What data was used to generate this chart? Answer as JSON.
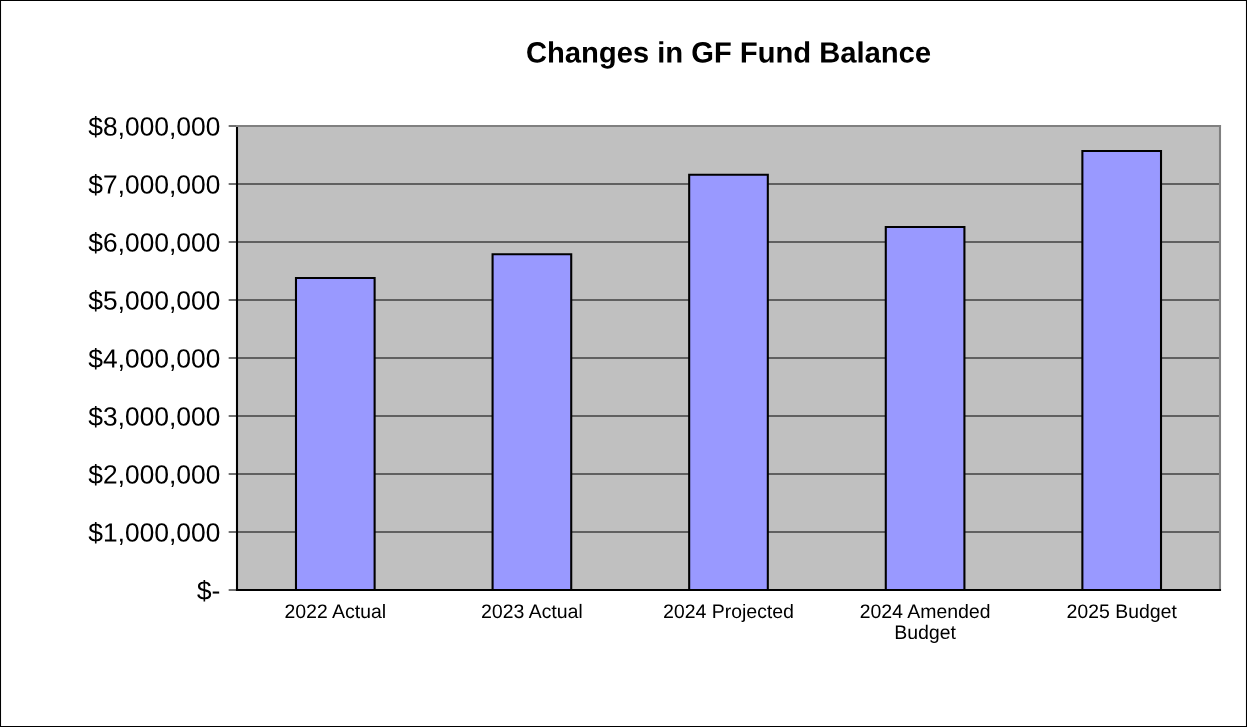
{
  "chart_data": {
    "type": "bar",
    "title": "Changes in GF Fund Balance",
    "categories": [
      "2022 Actual",
      "2023 Actual",
      "2024 Projected",
      "2024 Amended\nBudget",
      "2025 Budget"
    ],
    "values": [
      5380000,
      5790000,
      7160000,
      6260000,
      7570000
    ],
    "color": "#9999ff",
    "ylim": [
      0,
      8000000
    ],
    "yticks": [
      {
        "value": 0,
        "label": "$-"
      },
      {
        "value": 1000000,
        "label": "$1,000,000"
      },
      {
        "value": 2000000,
        "label": "$2,000,000"
      },
      {
        "value": 3000000,
        "label": "$3,000,000"
      },
      {
        "value": 4000000,
        "label": "$4,000,000"
      },
      {
        "value": 5000000,
        "label": "$5,000,000"
      },
      {
        "value": 6000000,
        "label": "$6,000,000"
      },
      {
        "value": 7000000,
        "label": "$7,000,000"
      },
      {
        "value": 8000000,
        "label": "$8,000,000"
      }
    ],
    "grid": "y",
    "legend": false
  }
}
